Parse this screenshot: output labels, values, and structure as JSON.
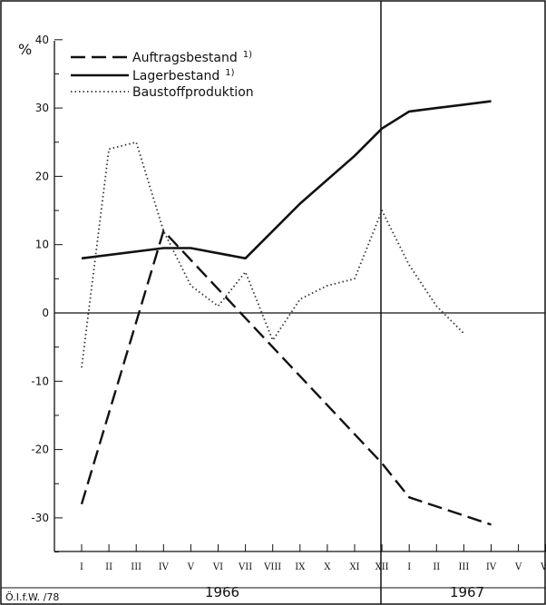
{
  "chart_data": {
    "type": "line",
    "ylabel": "%",
    "ylim": [
      -35,
      40
    ],
    "yticks": [
      40,
      30,
      20,
      10,
      0,
      -10,
      -20,
      -30
    ],
    "x_months": [
      "I",
      "II",
      "III",
      "IV",
      "V",
      "VI",
      "VII",
      "VIII",
      "IX",
      "X",
      "XI",
      "XII",
      "I",
      "II",
      "III",
      "IV",
      "V",
      "VI"
    ],
    "years": [
      "1966",
      "1967"
    ],
    "footer": "Ö.I.f.W. /78",
    "legend_position": "top-left",
    "grid": false,
    "series": [
      {
        "name": "Auftragsbestand",
        "superscript": "1)",
        "style": "dashed",
        "x": [
          1,
          4,
          12,
          13,
          16
        ],
        "values": [
          -28,
          12,
          -22,
          -27,
          -31
        ]
      },
      {
        "name": "Lagerbestand",
        "superscript": "1)",
        "style": "solid",
        "x": [
          1,
          4,
          5,
          7,
          9,
          11,
          12,
          13,
          14,
          16
        ],
        "values": [
          8,
          9.5,
          9.5,
          8,
          16,
          23,
          27,
          29.5,
          30,
          31
        ]
      },
      {
        "name": "Baustoffproduktion",
        "superscript": "",
        "style": "dotted",
        "x": [
          1,
          2,
          3,
          4,
          5,
          6,
          7,
          8,
          9,
          10,
          11,
          12,
          13,
          14,
          15
        ],
        "values": [
          -8,
          24,
          25,
          12,
          4,
          1,
          6,
          -4,
          2,
          4,
          5,
          15,
          7,
          1,
          -3
        ]
      }
    ]
  }
}
